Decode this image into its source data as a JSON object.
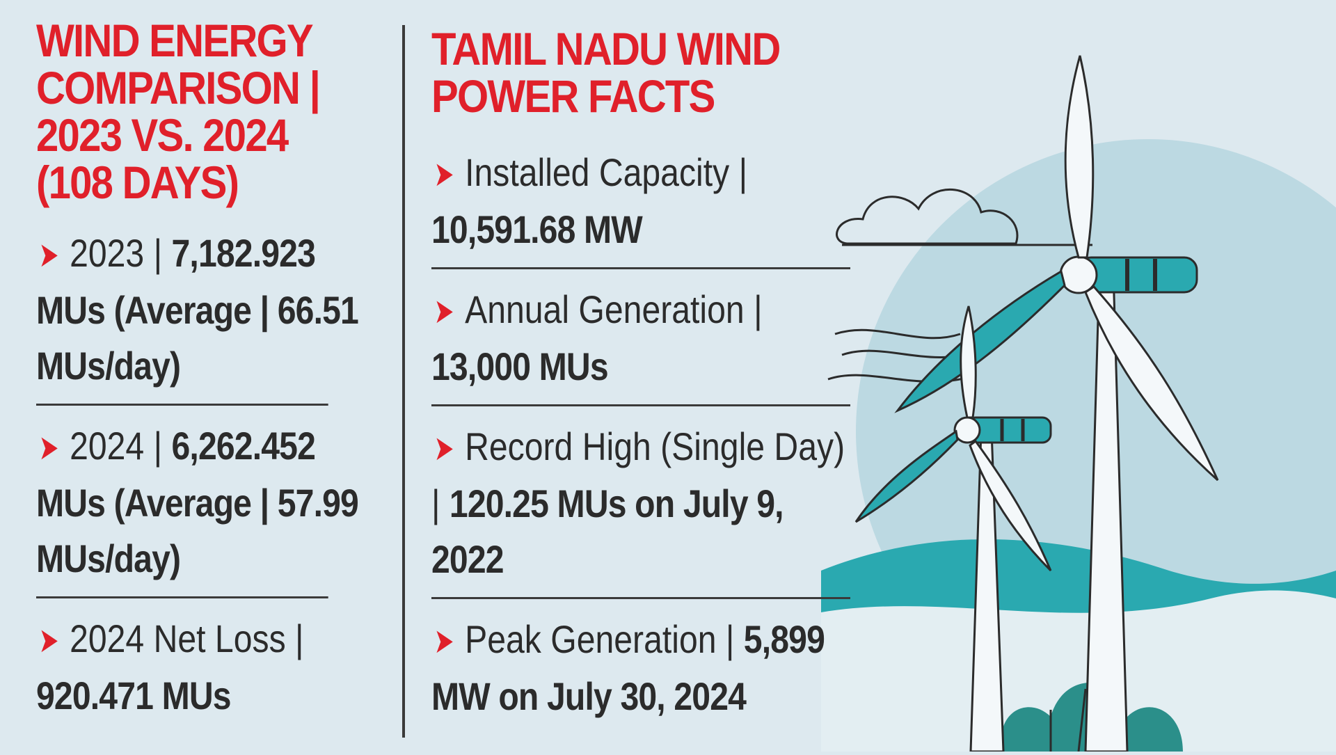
{
  "left": {
    "heading": "WIND ENERGY\nCOMPARISON |\n2023 VS. 2024\n(108 DAYS)",
    "items": [
      {
        "label": "2023 | ",
        "value": "7,182.923 MUs (Average | 66.51 MUs/day)"
      },
      {
        "label": "2024 | ",
        "value": "6,262.452 MUs (Average | 57.99 MUs/day)"
      },
      {
        "label": "2024 Net Loss | ",
        "value": "920.471 MUs"
      }
    ]
  },
  "right": {
    "heading": "TAMIL NADU WIND\nPOWER FACTS",
    "items": [
      {
        "label": "Installed Capacity | ",
        "value": "10,591.68 MW"
      },
      {
        "label": "Annual Generation | ",
        "value": "13,000 MUs"
      },
      {
        "label": "Record High (Single Day) | ",
        "value": "120.25 MUs on July 9, 2022"
      },
      {
        "label": "Peak Generation | ",
        "value": "5,899 MW on July 30, 2024"
      }
    ]
  },
  "colors": {
    "accent": "#e0202a",
    "teal": "#2aa9b0",
    "background": "#dde9ef",
    "text": "#2b2b2b"
  },
  "icons": {
    "bullet": "red-chevron-arrow",
    "illustration": "wind-turbines-illustration"
  }
}
